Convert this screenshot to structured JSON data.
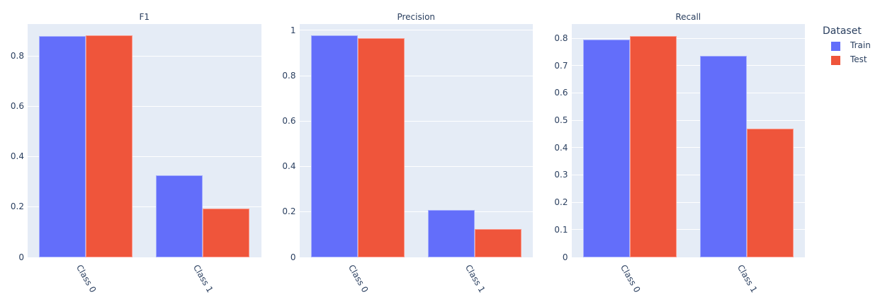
{
  "chart_data": [
    {
      "type": "bar",
      "title": "F1",
      "categories": [
        "Class 0",
        "Class 1"
      ],
      "series": [
        {
          "name": "Train",
          "values": [
            0.878,
            0.325
          ]
        },
        {
          "name": "Test",
          "values": [
            0.881,
            0.194
          ]
        }
      ],
      "xlabel": "",
      "ylabel": "",
      "ylim": [
        0,
        0.927
      ],
      "yticks": [
        0,
        0.2,
        0.4,
        0.6,
        0.8
      ],
      "ytick_labels": [
        "0",
        "0.2",
        "0.4",
        "0.6",
        "0.8"
      ],
      "grid": true
    },
    {
      "type": "bar",
      "title": "Precision",
      "categories": [
        "Class 0",
        "Class 1"
      ],
      "series": [
        {
          "name": "Train",
          "values": [
            0.977,
            0.207
          ]
        },
        {
          "name": "Test",
          "values": [
            0.966,
            0.122
          ]
        }
      ],
      "xlabel": "",
      "ylabel": "",
      "ylim": [
        0,
        1.028
      ],
      "yticks": [
        0,
        0.2,
        0.4,
        0.6,
        0.8,
        1
      ],
      "ytick_labels": [
        "0",
        "0.2",
        "0.4",
        "0.6",
        "0.8",
        "1"
      ],
      "grid": true
    },
    {
      "type": "bar",
      "title": "Recall",
      "categories": [
        "Class 0",
        "Class 1"
      ],
      "series": [
        {
          "name": "Train",
          "values": [
            0.796,
            0.736
          ]
        },
        {
          "name": "Test",
          "values": [
            0.808,
            0.47
          ]
        }
      ],
      "xlabel": "",
      "ylabel": "",
      "ylim": [
        0,
        0.852
      ],
      "yticks": [
        0,
        0.1,
        0.2,
        0.3,
        0.4,
        0.5,
        0.6,
        0.7,
        0.8
      ],
      "ytick_labels": [
        "0",
        "0.1",
        "0.2",
        "0.3",
        "0.4",
        "0.5",
        "0.6",
        "0.7",
        "0.8"
      ],
      "grid": true
    }
  ],
  "legend": {
    "title": "Dataset",
    "position": "right",
    "items": [
      {
        "label": "Train",
        "color": "#636EFA"
      },
      {
        "label": "Test",
        "color": "#EF553B"
      }
    ]
  },
  "colors": {
    "plot_bg": "#E5ECF6",
    "text": "#2a3f5f",
    "grid": "#ffffff"
  }
}
